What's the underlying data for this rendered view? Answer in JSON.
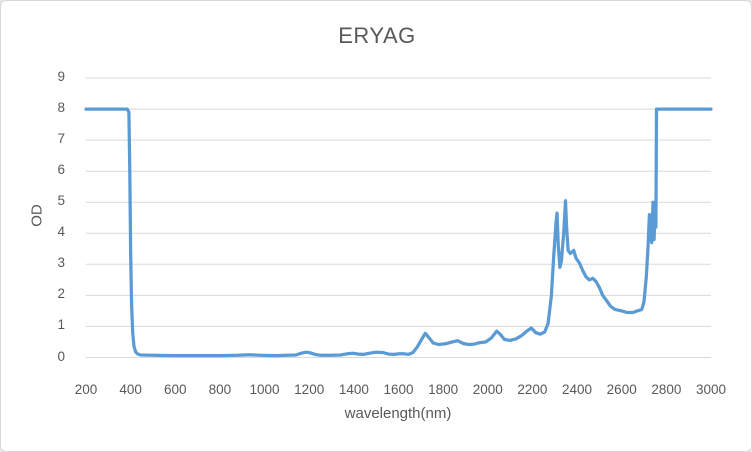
{
  "window": {
    "background": "#ffffff",
    "border_color": "#d7d7d7"
  },
  "colors": {
    "line": "#5b9bd5",
    "gridline": "#d9d9d9",
    "axis_line": "#d9d9d9",
    "text": "#595959"
  },
  "chart": {
    "title": "ERYAG",
    "y_axis_title": "OD",
    "x_axis_title": "wavelength(nm)"
  },
  "chart_data": {
    "type": "line",
    "title": "ERYAG",
    "xlabel": "wavelength(nm)",
    "ylabel": "OD",
    "xlim": [
      200,
      3000
    ],
    "ylim": [
      0,
      9
    ],
    "x_ticks": [
      200,
      400,
      600,
      800,
      1000,
      1200,
      1400,
      1600,
      1800,
      2000,
      2200,
      2400,
      2600,
      2800,
      3000
    ],
    "y_ticks": [
      0,
      1,
      2,
      3,
      4,
      5,
      6,
      7,
      8,
      9
    ],
    "grid": "horizontal",
    "legend": "none",
    "series": [
      {
        "name": "ERYAG",
        "color": "#5b9bd5",
        "points": [
          [
            200,
            8
          ],
          [
            385,
            8
          ],
          [
            392,
            7.9
          ],
          [
            396,
            6.0
          ],
          [
            400,
            3.5
          ],
          [
            404,
            1.8
          ],
          [
            409,
            0.8
          ],
          [
            415,
            0.35
          ],
          [
            422,
            0.18
          ],
          [
            432,
            0.11
          ],
          [
            445,
            0.08
          ],
          [
            500,
            0.07
          ],
          [
            600,
            0.06
          ],
          [
            700,
            0.06
          ],
          [
            800,
            0.06
          ],
          [
            880,
            0.07
          ],
          [
            930,
            0.09
          ],
          [
            980,
            0.07
          ],
          [
            1050,
            0.06
          ],
          [
            1100,
            0.07
          ],
          [
            1140,
            0.08
          ],
          [
            1165,
            0.14
          ],
          [
            1185,
            0.17
          ],
          [
            1205,
            0.15
          ],
          [
            1225,
            0.1
          ],
          [
            1250,
            0.07
          ],
          [
            1300,
            0.07
          ],
          [
            1340,
            0.08
          ],
          [
            1370,
            0.12
          ],
          [
            1395,
            0.14
          ],
          [
            1420,
            0.11
          ],
          [
            1445,
            0.1
          ],
          [
            1470,
            0.14
          ],
          [
            1500,
            0.17
          ],
          [
            1530,
            0.16
          ],
          [
            1555,
            0.11
          ],
          [
            1580,
            0.1
          ],
          [
            1605,
            0.12
          ],
          [
            1625,
            0.12
          ],
          [
            1645,
            0.1
          ],
          [
            1665,
            0.16
          ],
          [
            1685,
            0.35
          ],
          [
            1705,
            0.6
          ],
          [
            1720,
            0.78
          ],
          [
            1735,
            0.65
          ],
          [
            1755,
            0.47
          ],
          [
            1780,
            0.42
          ],
          [
            1810,
            0.44
          ],
          [
            1840,
            0.5
          ],
          [
            1865,
            0.54
          ],
          [
            1890,
            0.45
          ],
          [
            1915,
            0.42
          ],
          [
            1940,
            0.43
          ],
          [
            1965,
            0.48
          ],
          [
            1990,
            0.5
          ],
          [
            2015,
            0.62
          ],
          [
            2040,
            0.85
          ],
          [
            2055,
            0.75
          ],
          [
            2075,
            0.58
          ],
          [
            2100,
            0.55
          ],
          [
            2125,
            0.6
          ],
          [
            2150,
            0.7
          ],
          [
            2175,
            0.85
          ],
          [
            2195,
            0.95
          ],
          [
            2215,
            0.8
          ],
          [
            2235,
            0.75
          ],
          [
            2255,
            0.82
          ],
          [
            2270,
            1.1
          ],
          [
            2285,
            2.0
          ],
          [
            2295,
            3.2
          ],
          [
            2305,
            4.3
          ],
          [
            2310,
            4.65
          ],
          [
            2316,
            3.6
          ],
          [
            2323,
            2.9
          ],
          [
            2330,
            3.1
          ],
          [
            2340,
            4.0
          ],
          [
            2348,
            5.05
          ],
          [
            2353,
            4.2
          ],
          [
            2360,
            3.45
          ],
          [
            2370,
            3.35
          ],
          [
            2385,
            3.45
          ],
          [
            2395,
            3.2
          ],
          [
            2410,
            3.05
          ],
          [
            2425,
            2.8
          ],
          [
            2440,
            2.6
          ],
          [
            2455,
            2.5
          ],
          [
            2470,
            2.55
          ],
          [
            2485,
            2.45
          ],
          [
            2500,
            2.25
          ],
          [
            2515,
            2.0
          ],
          [
            2530,
            1.85
          ],
          [
            2550,
            1.65
          ],
          [
            2570,
            1.55
          ],
          [
            2600,
            1.5
          ],
          [
            2625,
            1.45
          ],
          [
            2650,
            1.45
          ],
          [
            2670,
            1.5
          ],
          [
            2690,
            1.55
          ],
          [
            2700,
            1.8
          ],
          [
            2710,
            2.6
          ],
          [
            2718,
            3.6
          ],
          [
            2724,
            4.6
          ],
          [
            2730,
            4.0
          ],
          [
            2735,
            3.7
          ],
          [
            2740,
            5.0
          ],
          [
            2745,
            3.8
          ],
          [
            2750,
            4.9
          ],
          [
            2753,
            4.2
          ],
          [
            2756,
            8
          ],
          [
            2800,
            8
          ],
          [
            3000,
            8
          ]
        ]
      }
    ]
  }
}
